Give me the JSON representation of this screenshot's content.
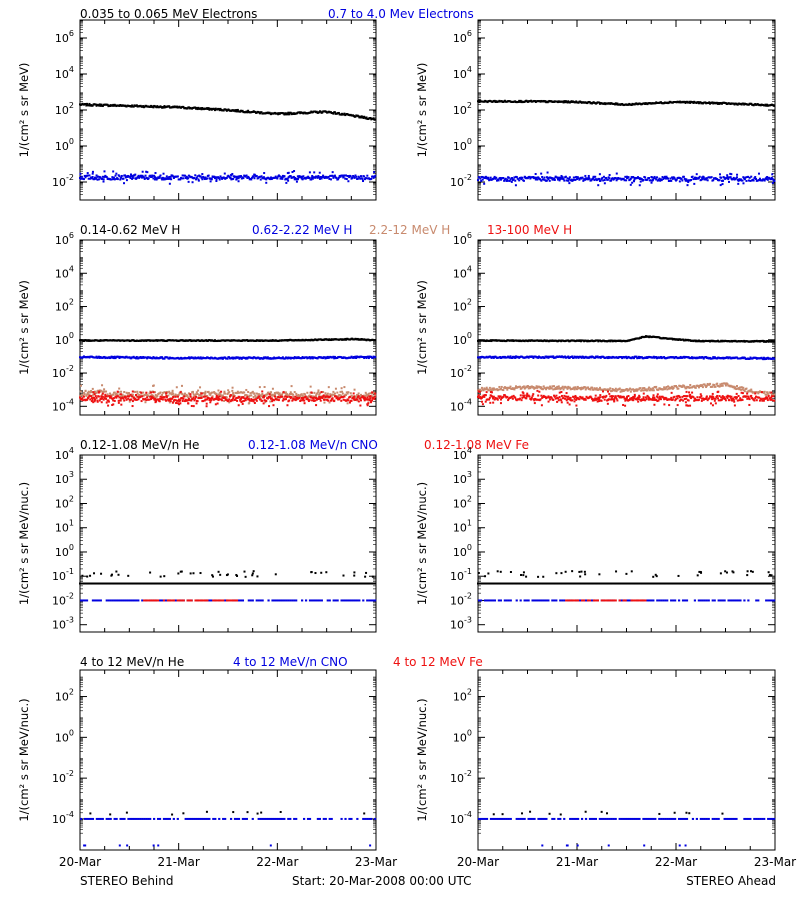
{
  "colors": {
    "black": "#000000",
    "blue": "#0000e0",
    "tan": "#c88a6e",
    "red": "#ee1111",
    "frame": "#000000"
  },
  "footer": {
    "left": "STEREO Behind",
    "center": "Start: 20-Mar-2008 00:00 UTC",
    "right": "STEREO Ahead"
  },
  "x_ticks": [
    "20-Mar",
    "21-Mar",
    "22-Mar",
    "23-Mar"
  ],
  "chart_data": [
    {
      "type": "scatter",
      "row": 1,
      "legend": [
        {
          "text": "0.035 to 0.065 MeV Electrons",
          "color": "#000000"
        },
        {
          "text": "0.7 to 4.0 Mev Electrons",
          "color": "#0000e0"
        }
      ],
      "ylabel": "1/(cm² s sr MeV)",
      "yscale": "log",
      "ylim": [
        0.001,
        10000000
      ],
      "y_ticks": [
        {
          "e": -2
        },
        {
          "e": 0
        },
        {
          "e": 2
        },
        {
          "e": 4
        },
        {
          "e": 6
        }
      ],
      "panels": [
        {
          "spacecraft": "STEREO Behind",
          "series": [
            {
              "color": "#000000",
              "x": [
                0,
                0.5,
                1.0,
                1.5,
                2.0,
                2.5,
                3.0
              ],
              "y": [
                200,
                170,
                140,
                100,
                60,
                80,
                30
              ],
              "scatter": 0.05,
              "dots": 0
            },
            {
              "color": "#0000e0",
              "x": [
                0,
                1,
                2,
                3
              ],
              "y": [
                0.018,
                0.018,
                0.018,
                0.018
              ],
              "scatter": 0.12,
              "dots": 70
            }
          ]
        },
        {
          "spacecraft": "STEREO Ahead",
          "series": [
            {
              "color": "#000000",
              "x": [
                0,
                0.5,
                1.0,
                1.5,
                2.0,
                2.5,
                3.0
              ],
              "y": [
                300,
                300,
                280,
                200,
                280,
                230,
                180
              ],
              "scatter": 0.04,
              "dots": 0
            },
            {
              "color": "#0000e0",
              "x": [
                0,
                1,
                2,
                3
              ],
              "y": [
                0.015,
                0.015,
                0.015,
                0.015
              ],
              "scatter": 0.12,
              "dots": 70
            }
          ]
        }
      ]
    },
    {
      "type": "scatter",
      "row": 2,
      "legend": [
        {
          "text": "0.14-0.62 MeV H",
          "color": "#000000"
        },
        {
          "text": "0.62-2.22 MeV H",
          "color": "#0000e0"
        },
        {
          "text": "2.2-12 MeV H",
          "color": "#c88a6e"
        },
        {
          "text": "13-100 MeV H",
          "color": "#ee1111"
        }
      ],
      "ylabel": "1/(cm² s sr MeV)",
      "yscale": "log",
      "ylim": [
        3e-05,
        1000000
      ],
      "y_ticks": [
        {
          "e": -4
        },
        {
          "e": -2
        },
        {
          "e": 0
        },
        {
          "e": 2
        },
        {
          "e": 4
        },
        {
          "e": 6
        }
      ],
      "panels": [
        {
          "spacecraft": "STEREO Behind",
          "series": [
            {
              "color": "#000000",
              "x": [
                0,
                1,
                2,
                2.8,
                3.0
              ],
              "y": [
                0.9,
                0.9,
                0.9,
                1.1,
                0.9
              ],
              "scatter": 0.03,
              "dots": 0
            },
            {
              "color": "#0000e0",
              "x": [
                0,
                1,
                2,
                3
              ],
              "y": [
                0.09,
                0.08,
                0.08,
                0.09
              ],
              "scatter": 0.05,
              "dots": 0
            },
            {
              "color": "#c88a6e",
              "x": [
                0,
                1,
                2,
                3
              ],
              "y": [
                0.0006,
                0.0005,
                0.0005,
                0.0005
              ],
              "scatter": 0.18,
              "dots": 80
            },
            {
              "color": "#ee1111",
              "x": [
                0,
                1,
                2,
                3
              ],
              "y": [
                0.0003,
                0.00028,
                0.00028,
                0.0003
              ],
              "scatter": 0.15,
              "dots": 120
            }
          ]
        },
        {
          "spacecraft": "STEREO Ahead",
          "series": [
            {
              "color": "#000000",
              "x": [
                0,
                1.5,
                1.7,
                1.9,
                2.2,
                3.0
              ],
              "y": [
                0.9,
                0.85,
                1.6,
                1.2,
                0.85,
                0.8
              ],
              "scatter": 0.03,
              "dots": 0
            },
            {
              "color": "#0000e0",
              "x": [
                0,
                1,
                2,
                3
              ],
              "y": [
                0.09,
                0.09,
                0.085,
                0.075
              ],
              "scatter": 0.05,
              "dots": 0
            },
            {
              "color": "#c88a6e",
              "x": [
                0,
                0.5,
                1.0,
                1.5,
                2.0,
                2.5,
                2.8,
                3.0
              ],
              "y": [
                0.001,
                0.0014,
                0.0012,
                0.0009,
                0.0014,
                0.002,
                0.0007,
                0.0005
              ],
              "scatter": 0.1,
              "dots": 0
            },
            {
              "color": "#ee1111",
              "x": [
                0,
                1,
                2,
                3
              ],
              "y": [
                0.00035,
                0.0003,
                0.0003,
                0.0003
              ],
              "scatter": 0.15,
              "dots": 120
            }
          ]
        }
      ]
    },
    {
      "type": "scatter",
      "row": 3,
      "legend": [
        {
          "text": "0.12-1.08 MeV/n He",
          "color": "#000000"
        },
        {
          "text": "0.12-1.08 MeV/n CNO",
          "color": "#0000e0"
        },
        {
          "text": "0.12-1.08 MeV Fe",
          "color": "#ee1111"
        }
      ],
      "ylabel": "1/(cm² s sr MeV/nuc.)",
      "yscale": "log",
      "ylim": [
        0.0005,
        10000
      ],
      "y_ticks": [
        {
          "e": -3,
          "style": "pow"
        },
        {
          "e": -2,
          "style": "pow"
        },
        {
          "e": -1,
          "style": "pow"
        },
        {
          "e": 0,
          "style": "pow"
        },
        {
          "e": 1,
          "style": "pow"
        },
        {
          "e": 2,
          "style": "pow"
        },
        {
          "e": 3,
          "style": "pow"
        },
        {
          "e": 4,
          "style": "pow"
        }
      ],
      "panels": [
        {
          "spacecraft": "STEREO Behind",
          "series": [
            {
              "color": "#000000",
              "x": [
                0,
                3
              ],
              "y": [
                0.05,
                0.05
              ],
              "scatter": 0,
              "dots": 0
            },
            {
              "color": "#000000",
              "x": [
                0,
                3
              ],
              "y": [
                0.11,
                0.11
              ],
              "scatter": 0.08,
              "dots": 45,
              "sparse": true
            },
            {
              "color": "#0000e0",
              "x": [
                0,
                3
              ],
              "y": [
                0.01,
                0.01
              ],
              "scatter": 0,
              "dots": 0,
              "dashed": true
            },
            {
              "color": "#ee1111",
              "x": [
                0.6,
                1.6
              ],
              "y": [
                0.01,
                0.01
              ],
              "scatter": 0,
              "dots": 0,
              "dashed": true
            }
          ]
        },
        {
          "spacecraft": "STEREO Ahead",
          "series": [
            {
              "color": "#000000",
              "x": [
                0,
                3
              ],
              "y": [
                0.05,
                0.05
              ],
              "scatter": 0,
              "dots": 0
            },
            {
              "color": "#000000",
              "x": [
                0,
                3
              ],
              "y": [
                0.11,
                0.11
              ],
              "scatter": 0.08,
              "dots": 45,
              "sparse": true
            },
            {
              "color": "#0000e0",
              "x": [
                0,
                3
              ],
              "y": [
                0.01,
                0.01
              ],
              "scatter": 0,
              "dots": 0,
              "dashed": true
            },
            {
              "color": "#ee1111",
              "x": [
                0.8,
                1.7
              ],
              "y": [
                0.01,
                0.01
              ],
              "scatter": 0,
              "dots": 0,
              "dashed": true
            }
          ]
        }
      ]
    },
    {
      "type": "scatter",
      "row": 4,
      "legend": [
        {
          "text": "4 to 12 MeV/n He",
          "color": "#000000"
        },
        {
          "text": "4 to 12 MeV/n CNO",
          "color": "#0000e0"
        },
        {
          "text": "4 to 12 MeV Fe",
          "color": "#ee1111"
        }
      ],
      "ylabel": "1/(cm² s sr MeV/nuc.)",
      "yscale": "log",
      "ylim": [
        3e-06,
        2000
      ],
      "y_ticks": [
        {
          "e": -4
        },
        {
          "e": -2
        },
        {
          "e": 0
        },
        {
          "e": 2
        }
      ],
      "panels": [
        {
          "spacecraft": "STEREO Behind",
          "series": [
            {
              "color": "#0000e0",
              "x": [
                0,
                3
              ],
              "y": [
                0.0001,
                0.0001
              ],
              "scatter": 0,
              "dots": 0,
              "dashed": true
            },
            {
              "color": "#000000",
              "x": [
                0,
                3
              ],
              "y": [
                0.00018,
                0.00018
              ],
              "scatter": 0.05,
              "dots": 12,
              "sparse": true
            },
            {
              "color": "#0000e0",
              "x": [
                0,
                3
              ],
              "y": [
                5e-06,
                5e-06
              ],
              "scatter": 0,
              "dots": 8,
              "sparse": true
            }
          ]
        },
        {
          "spacecraft": "STEREO Ahead",
          "series": [
            {
              "color": "#0000e0",
              "x": [
                0,
                3
              ],
              "y": [
                0.0001,
                0.0001
              ],
              "scatter": 0,
              "dots": 0,
              "dashed": true
            },
            {
              "color": "#000000",
              "x": [
                0,
                3
              ],
              "y": [
                0.00018,
                0.00018
              ],
              "scatter": 0.05,
              "dots": 14,
              "sparse": true
            },
            {
              "color": "#0000e0",
              "x": [
                0,
                3
              ],
              "y": [
                5e-06,
                5e-06
              ],
              "scatter": 0,
              "dots": 8,
              "sparse": true
            }
          ]
        }
      ]
    }
  ]
}
